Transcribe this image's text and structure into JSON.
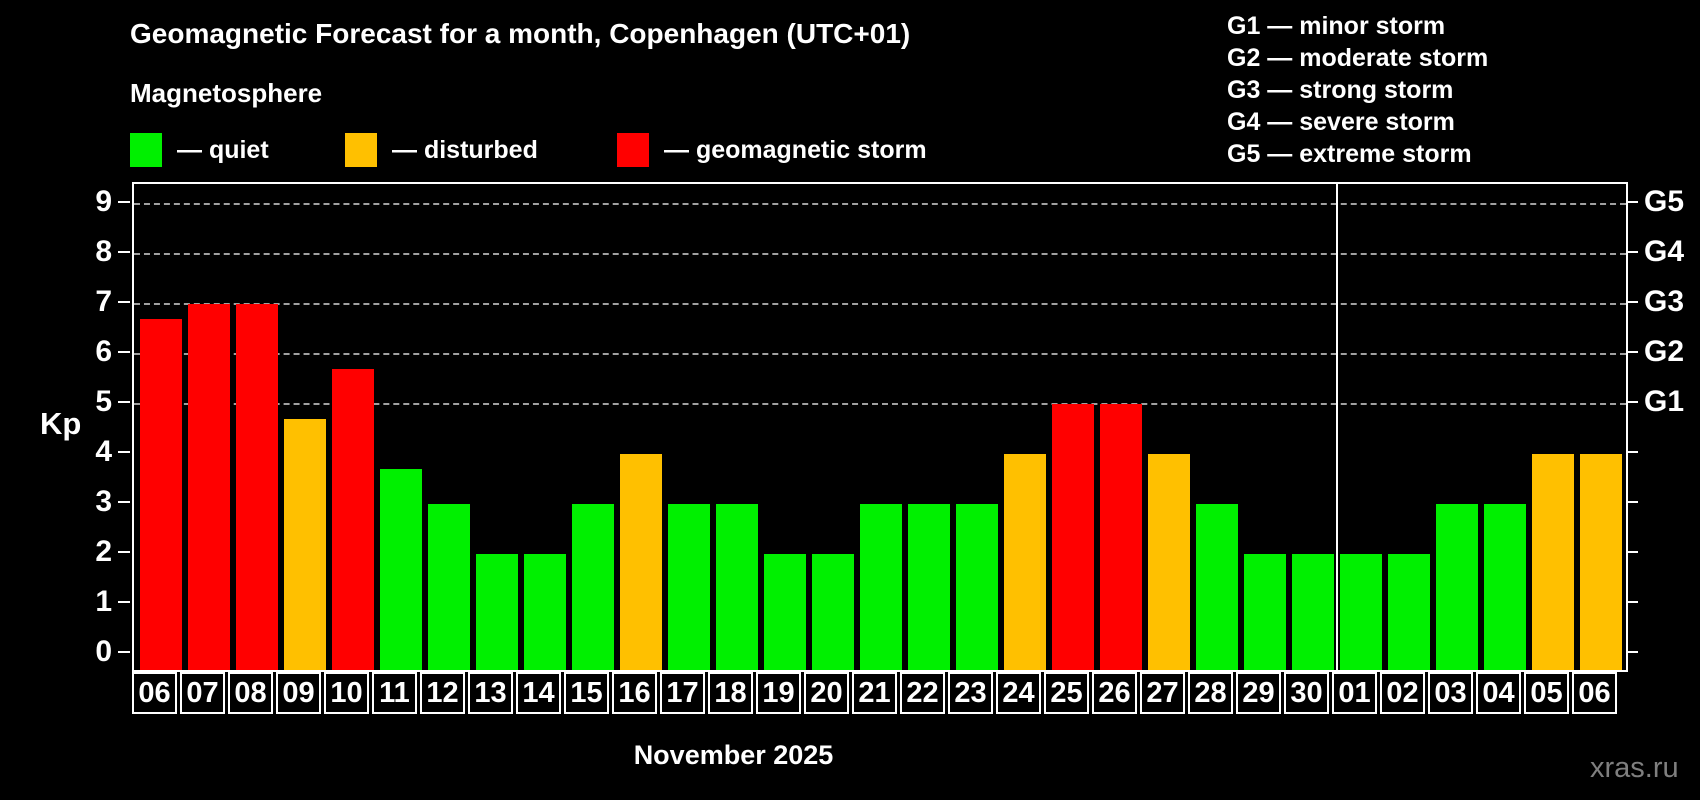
{
  "title": "Geomagnetic Forecast for a month, Copenhagen (UTC+01)",
  "subtitle": "Magnetosphere",
  "legend": [
    {
      "key": "quiet",
      "label": "— quiet",
      "color": "#00f000"
    },
    {
      "key": "disturbed",
      "label": "— disturbed",
      "color": "#ffc000"
    },
    {
      "key": "storm",
      "label": "— geomagnetic storm",
      "color": "#ff0000"
    }
  ],
  "storm_scale_legend": [
    "G1 — minor storm",
    "G2 — moderate storm",
    "G3 — strong storm",
    "G4 — severe storm",
    "G5 — extreme storm"
  ],
  "watermark": "xras.ru",
  "chart_data": {
    "type": "bar",
    "title": "Geomagnetic Forecast for a month, Copenhagen (UTC+01)",
    "xlabel": "November 2025",
    "ylabel": "Kp",
    "ylim": [
      0,
      9
    ],
    "y_ticks": [
      0,
      1,
      2,
      3,
      4,
      5,
      6,
      7,
      8,
      9
    ],
    "gridlines_kp": [
      5,
      6,
      7,
      8,
      9
    ],
    "grid": "dashed horizontal lines at Kp 5–9 only",
    "legend_position": "top",
    "categories": [
      "06",
      "07",
      "08",
      "09",
      "10",
      "11",
      "12",
      "13",
      "14",
      "15",
      "16",
      "17",
      "18",
      "19",
      "20",
      "21",
      "22",
      "23",
      "24",
      "25",
      "26",
      "27",
      "28",
      "29",
      "30",
      "01",
      "02",
      "03",
      "04",
      "05",
      "06"
    ],
    "values": [
      6.7,
      7,
      7,
      4.7,
      5.7,
      3.7,
      3,
      2,
      2,
      3,
      4,
      3,
      3,
      2,
      2,
      3,
      3,
      3,
      4,
      5,
      5,
      4,
      3,
      2,
      2,
      2,
      2,
      3,
      3,
      4,
      4
    ],
    "statuses": [
      "storm",
      "storm",
      "storm",
      "disturbed",
      "storm",
      "quiet",
      "quiet",
      "quiet",
      "quiet",
      "quiet",
      "disturbed",
      "quiet",
      "quiet",
      "quiet",
      "quiet",
      "quiet",
      "quiet",
      "quiet",
      "disturbed",
      "storm",
      "storm",
      "disturbed",
      "quiet",
      "quiet",
      "quiet",
      "quiet",
      "quiet",
      "quiet",
      "quiet",
      "disturbed",
      "disturbed"
    ],
    "status_colors": {
      "quiet": "#00f000",
      "disturbed": "#ffc000",
      "storm": "#ff0000"
    },
    "december_start_index": 25,
    "right_axis": [
      {
        "kp": 5,
        "label": "G1"
      },
      {
        "kp": 6,
        "label": "G2"
      },
      {
        "kp": 7,
        "label": "G3"
      },
      {
        "kp": 8,
        "label": "G4"
      },
      {
        "kp": 9,
        "label": "G5"
      }
    ]
  }
}
